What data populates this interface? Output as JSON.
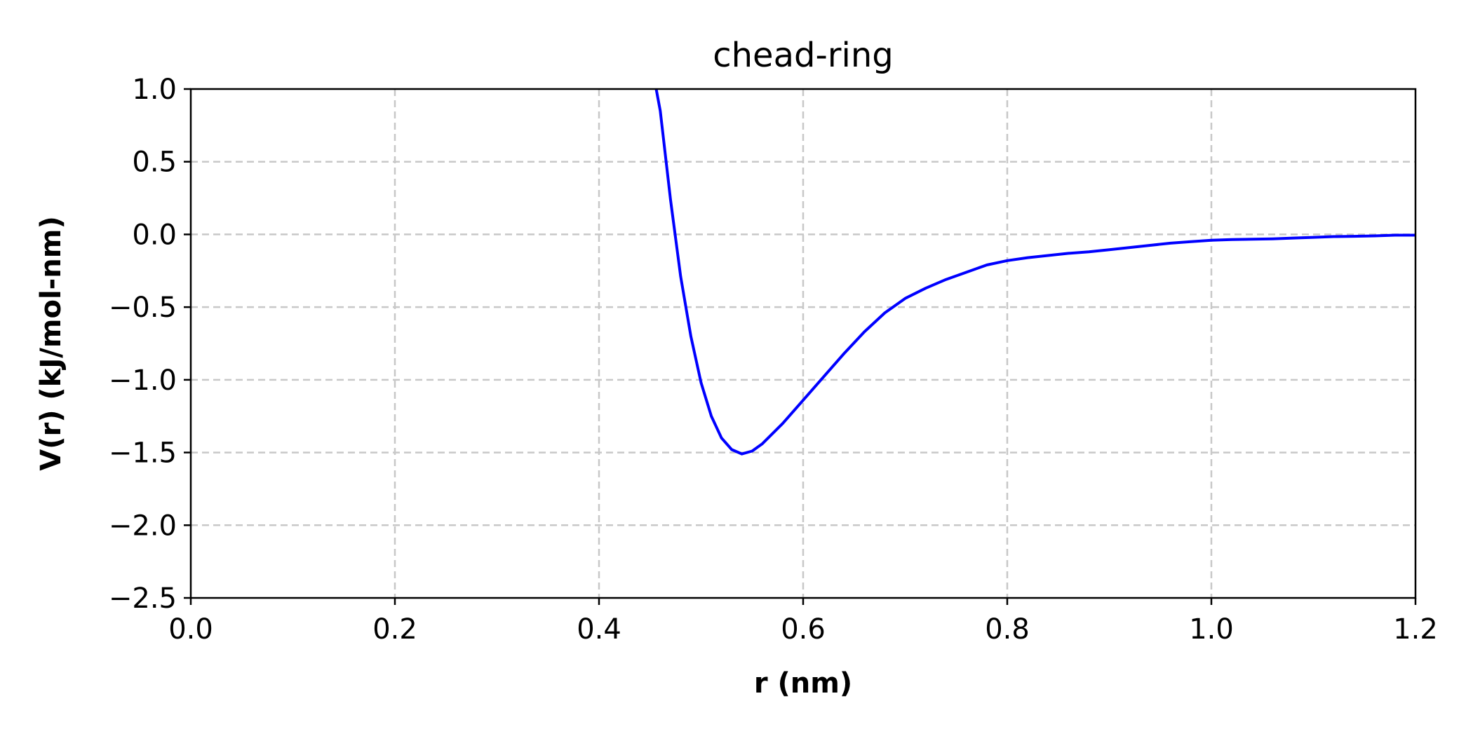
{
  "chart_data": {
    "type": "line",
    "title": "chead-ring",
    "xlabel": "r (nm)",
    "ylabel": "V(r) (kJ/mol-nm)",
    "xlim": [
      0.0,
      1.2
    ],
    "ylim": [
      -2.5,
      1.0
    ],
    "xticks": [
      0.0,
      0.2,
      0.4,
      0.6,
      0.8,
      1.0,
      1.2
    ],
    "xtick_labels": [
      "0.0",
      "0.2",
      "0.4",
      "0.6",
      "0.8",
      "1.0",
      "1.2"
    ],
    "yticks": [
      -2.5,
      -2.0,
      -1.5,
      -1.0,
      -0.5,
      0.0,
      0.5,
      1.0
    ],
    "ytick_labels": [
      "−2.5",
      "−2.0",
      "−1.5",
      "−1.0",
      "−0.5",
      "0.0",
      "0.5",
      "1.0"
    ],
    "grid": true,
    "series": [
      {
        "color": "#0000ff",
        "x": [
          0.456,
          0.46,
          0.47,
          0.48,
          0.49,
          0.5,
          0.51,
          0.52,
          0.53,
          0.54,
          0.55,
          0.56,
          0.58,
          0.6,
          0.62,
          0.64,
          0.66,
          0.68,
          0.7,
          0.72,
          0.74,
          0.76,
          0.78,
          0.8,
          0.82,
          0.84,
          0.86,
          0.88,
          0.9,
          0.92,
          0.94,
          0.96,
          0.98,
          1.0,
          1.02,
          1.04,
          1.06,
          1.08,
          1.1,
          1.12,
          1.14,
          1.16,
          1.18,
          1.2
        ],
        "y": [
          1.0,
          0.85,
          0.24,
          -0.29,
          -0.7,
          -1.02,
          -1.25,
          -1.4,
          -1.48,
          -1.51,
          -1.49,
          -1.44,
          -1.3,
          -1.14,
          -0.98,
          -0.82,
          -0.67,
          -0.54,
          -0.44,
          -0.37,
          -0.31,
          -0.26,
          -0.21,
          -0.18,
          -0.16,
          -0.145,
          -0.13,
          -0.12,
          -0.105,
          -0.09,
          -0.075,
          -0.06,
          -0.05,
          -0.04,
          -0.035,
          -0.033,
          -0.03,
          -0.025,
          -0.02,
          -0.015,
          -0.013,
          -0.01,
          -0.005,
          -0.005
        ]
      }
    ]
  }
}
